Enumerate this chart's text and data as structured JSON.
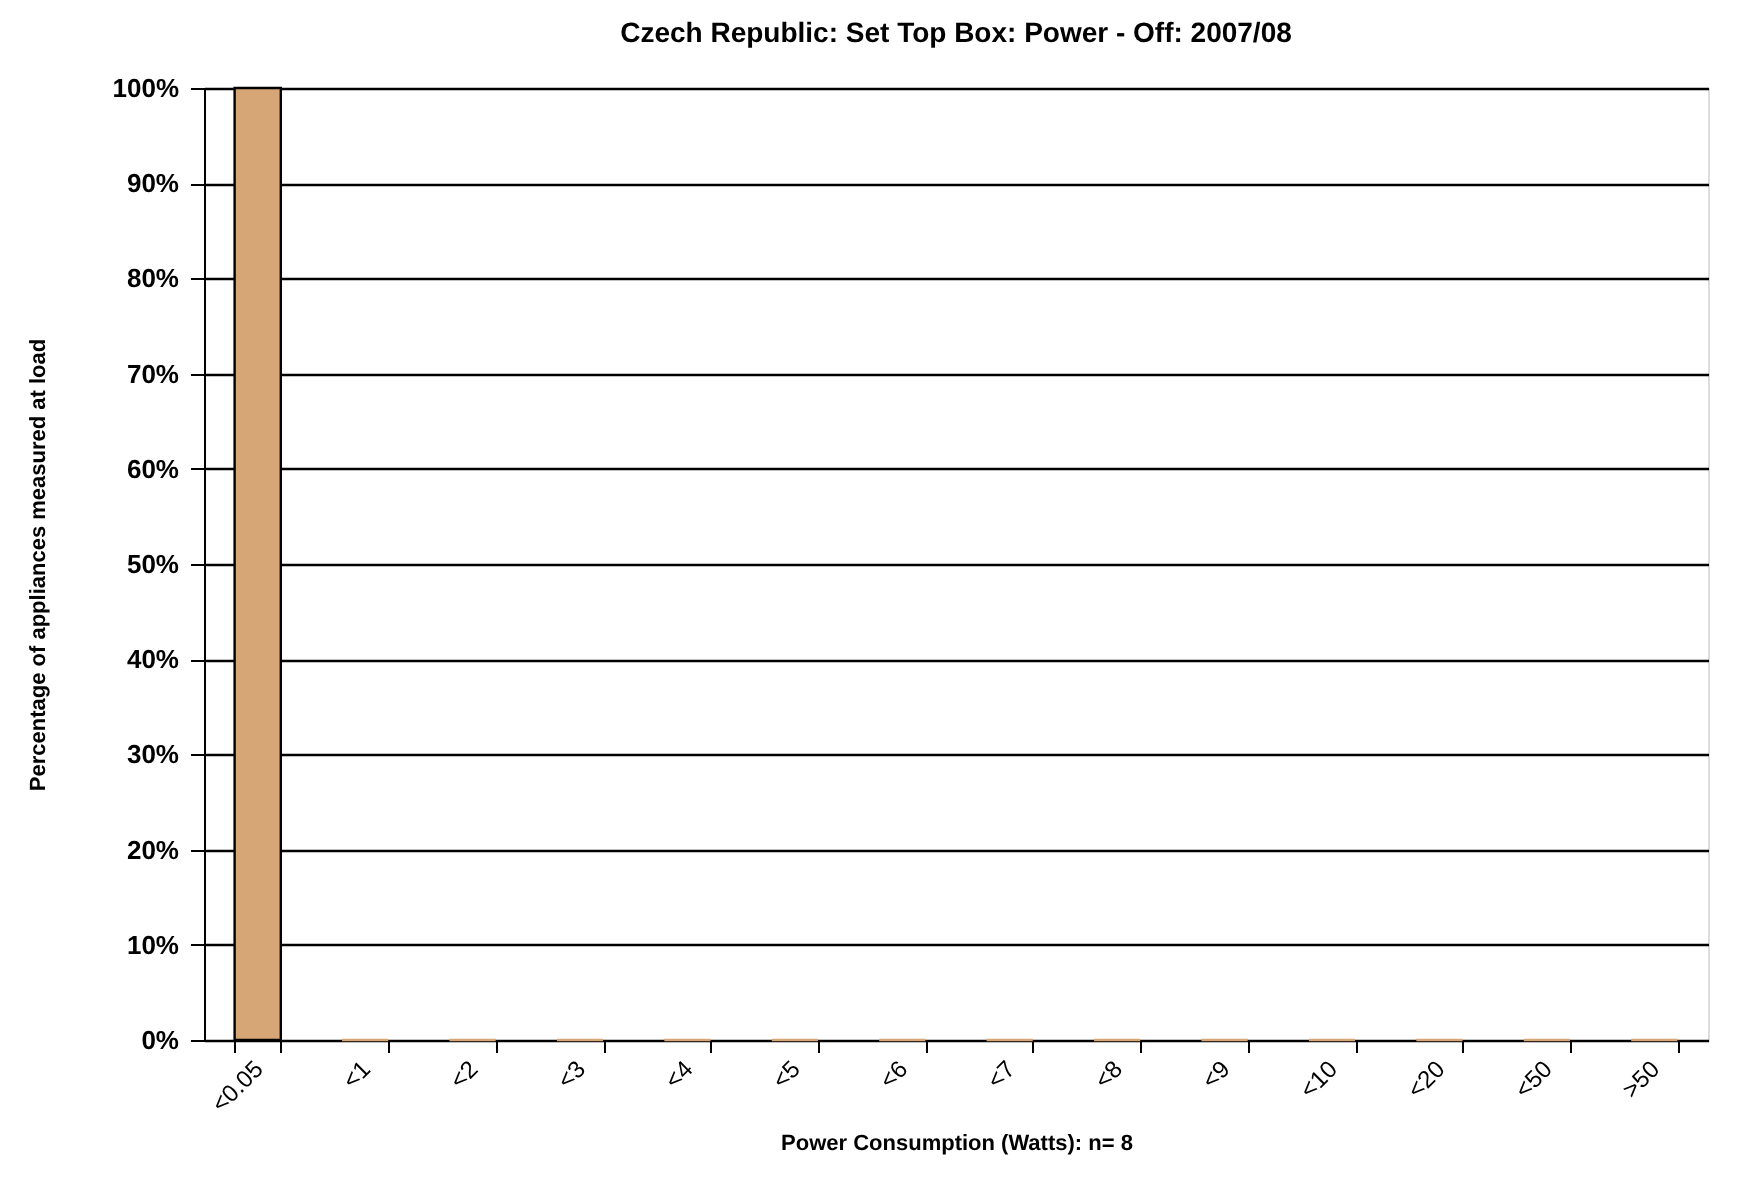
{
  "chart_data": {
    "type": "bar",
    "title": "Czech Republic: Set Top Box: Power - Off: 2007/08",
    "xlabel": "Power Consumption (Watts):  n= 8",
    "ylabel": "Percentage of appliances measured at load",
    "categories": [
      "<0.05",
      "<1",
      "<2",
      "<3",
      "<4",
      "<5",
      "<6",
      "<7",
      "<8",
      "<9",
      "<10",
      "<20",
      "<50",
      ">50"
    ],
    "values": [
      100,
      0,
      0,
      0,
      0,
      0,
      0,
      0,
      0,
      0,
      0,
      0,
      0,
      0
    ],
    "color": "#d6a677",
    "ylim": [
      0,
      100
    ],
    "yticks": [
      {
        "value": 0,
        "label": "0%"
      },
      {
        "value": 10,
        "label": "10%"
      },
      {
        "value": 20,
        "label": "20%"
      },
      {
        "value": 30,
        "label": "30%"
      },
      {
        "value": 40,
        "label": "40%"
      },
      {
        "value": 50,
        "label": "50%"
      },
      {
        "value": 60,
        "label": "60%"
      },
      {
        "value": 70,
        "label": "70%"
      },
      {
        "value": 80,
        "label": "80%"
      },
      {
        "value": 90,
        "label": "90%"
      },
      {
        "value": 100,
        "label": "100%"
      }
    ],
    "grid": "y"
  }
}
